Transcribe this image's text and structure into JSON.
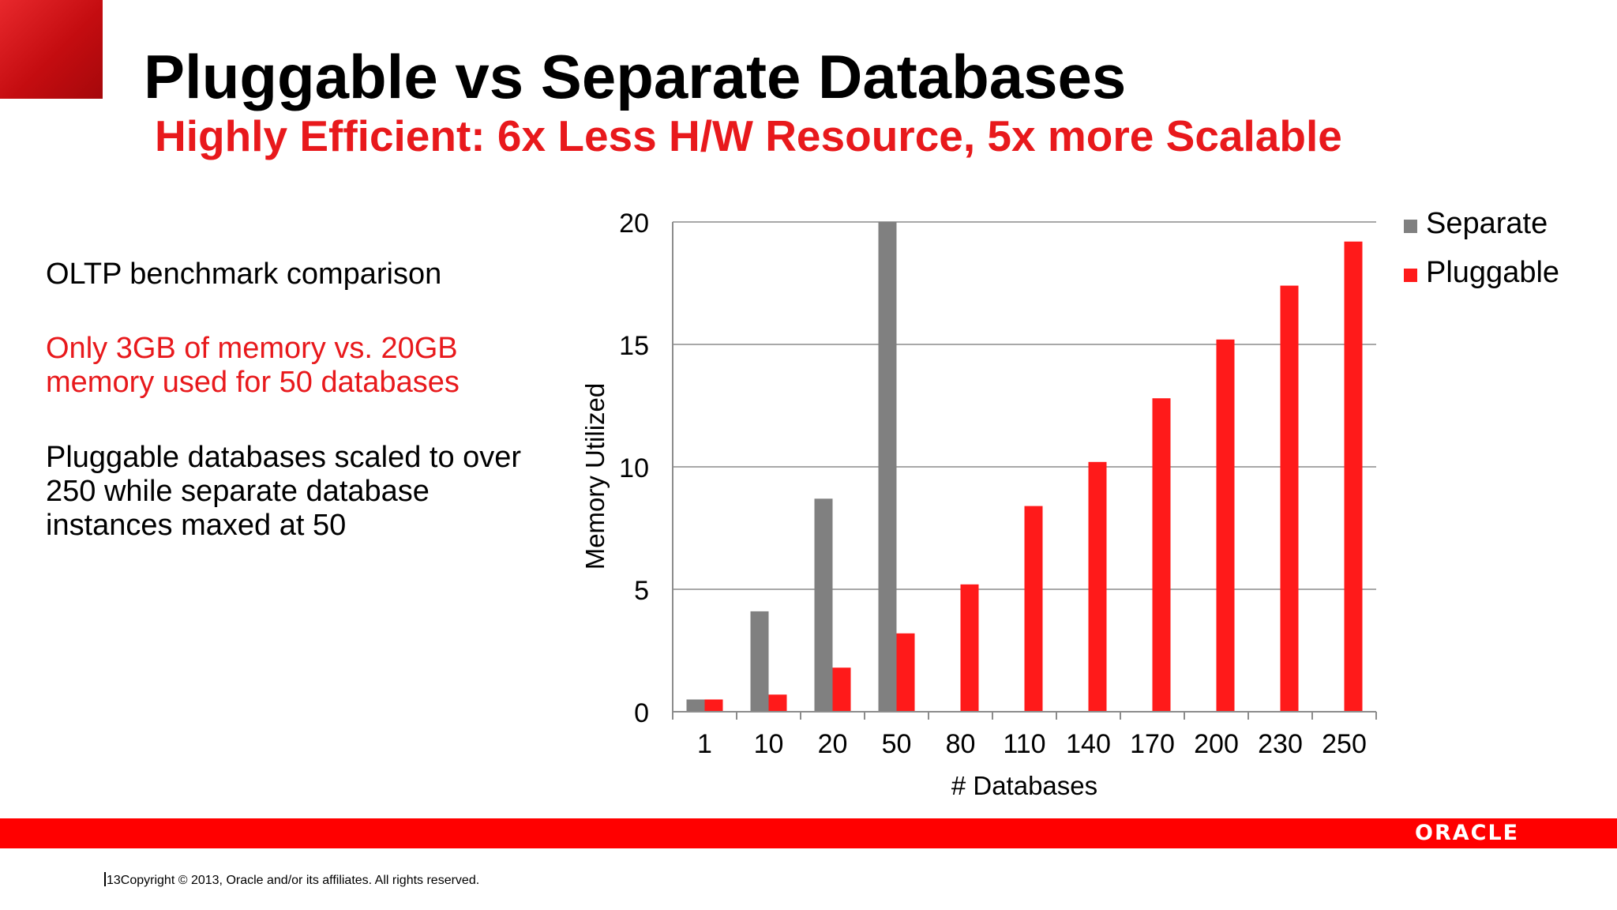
{
  "slide": {
    "title": "Pluggable vs Separate Databases",
    "subtitle": "Highly Efficient:  6x Less H/W Resource, 5x more Scalable",
    "bullets": [
      "OLTP benchmark comparison",
      "Only 3GB of memory vs. 20GB memory used for 50 databases",
      "Pluggable databases scaled to over 250 while separate database instances maxed at 50"
    ],
    "logo_text": "ORACLE",
    "footer_page": "13",
    "footer_copyright": "Copyright © 2013, Oracle and/or its affiliates. All rights reserved."
  },
  "colors": {
    "accent_red": "#e8191c",
    "band_red": "#ff0000",
    "bar_red": "#ff1a1a",
    "bar_gray": "#808080"
  },
  "chart_data": {
    "type": "bar",
    "categories": [
      "1",
      "10",
      "20",
      "50",
      "80",
      "110",
      "140",
      "170",
      "200",
      "230",
      "250"
    ],
    "series": [
      {
        "name": "Separate",
        "color": "#808080",
        "values": [
          0.5,
          4.1,
          8.7,
          20,
          null,
          null,
          null,
          null,
          null,
          null,
          null
        ]
      },
      {
        "name": "Pluggable",
        "color": "#ff1a1a",
        "values": [
          0.5,
          0.7,
          1.8,
          3.2,
          5.2,
          8.4,
          10.2,
          12.8,
          15.2,
          17.4,
          19.2
        ]
      }
    ],
    "title": "",
    "xlabel": "# Databases",
    "ylabel": "Memory Utilized",
    "ylim": [
      0,
      20
    ],
    "yticks": [
      0,
      5,
      10,
      15,
      20
    ],
    "grid": true,
    "legend": "right"
  }
}
